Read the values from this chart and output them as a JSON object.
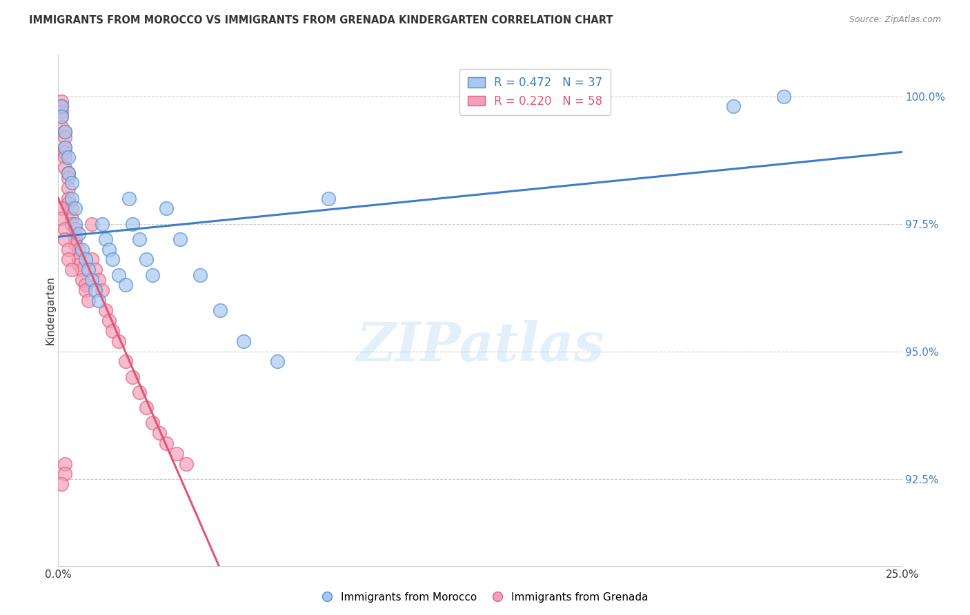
{
  "title": "IMMIGRANTS FROM MOROCCO VS IMMIGRANTS FROM GRENADA KINDERGARTEN CORRELATION CHART",
  "source": "Source: ZipAtlas.com",
  "ylabel": "Kindergarten",
  "ytick_labels": [
    "92.5%",
    "95.0%",
    "97.5%",
    "100.0%"
  ],
  "ytick_values": [
    0.925,
    0.95,
    0.975,
    1.0
  ],
  "xlim": [
    0.0,
    0.25
  ],
  "ylim": [
    0.908,
    1.008
  ],
  "morocco_color": "#a8c8f0",
  "grenada_color": "#f4a0b8",
  "morocco_edge": "#5090d0",
  "grenada_edge": "#e06080",
  "trendline_morocco": "#3d7cc9",
  "trendline_grenada": "#e05575",
  "R_morocco": 0.472,
  "N_morocco": 37,
  "R_grenada": 0.22,
  "N_grenada": 58,
  "morocco_x": [
    0.001,
    0.001,
    0.002,
    0.002,
    0.003,
    0.003,
    0.004,
    0.004,
    0.005,
    0.005,
    0.006,
    0.007,
    0.008,
    0.009,
    0.01,
    0.011,
    0.012,
    0.013,
    0.014,
    0.015,
    0.016,
    0.018,
    0.02,
    0.021,
    0.022,
    0.024,
    0.026,
    0.028,
    0.032,
    0.036,
    0.042,
    0.048,
    0.055,
    0.065,
    0.08,
    0.2,
    0.215
  ],
  "morocco_y": [
    0.998,
    0.996,
    0.993,
    0.99,
    0.988,
    0.985,
    0.983,
    0.98,
    0.978,
    0.975,
    0.973,
    0.97,
    0.968,
    0.966,
    0.964,
    0.962,
    0.96,
    0.975,
    0.972,
    0.97,
    0.968,
    0.965,
    0.963,
    0.98,
    0.975,
    0.972,
    0.968,
    0.965,
    0.978,
    0.972,
    0.965,
    0.958,
    0.952,
    0.948,
    0.98,
    0.998,
    1.0
  ],
  "grenada_x": [
    0.001,
    0.001,
    0.001,
    0.001,
    0.001,
    0.002,
    0.002,
    0.002,
    0.002,
    0.002,
    0.002,
    0.003,
    0.003,
    0.003,
    0.003,
    0.003,
    0.004,
    0.004,
    0.004,
    0.005,
    0.005,
    0.005,
    0.006,
    0.006,
    0.006,
    0.007,
    0.007,
    0.008,
    0.008,
    0.009,
    0.01,
    0.01,
    0.011,
    0.012,
    0.013,
    0.014,
    0.015,
    0.016,
    0.018,
    0.02,
    0.022,
    0.024,
    0.026,
    0.028,
    0.03,
    0.032,
    0.035,
    0.038,
    0.001,
    0.001,
    0.002,
    0.002,
    0.003,
    0.003,
    0.004,
    0.002,
    0.002,
    0.001
  ],
  "grenada_y": [
    0.999,
    0.998,
    0.997,
    0.996,
    0.994,
    0.993,
    0.992,
    0.99,
    0.989,
    0.988,
    0.986,
    0.985,
    0.984,
    0.982,
    0.98,
    0.979,
    0.978,
    0.976,
    0.975,
    0.974,
    0.972,
    0.971,
    0.97,
    0.968,
    0.967,
    0.966,
    0.964,
    0.963,
    0.962,
    0.96,
    0.975,
    0.968,
    0.966,
    0.964,
    0.962,
    0.958,
    0.956,
    0.954,
    0.952,
    0.948,
    0.945,
    0.942,
    0.939,
    0.936,
    0.934,
    0.932,
    0.93,
    0.928,
    0.978,
    0.976,
    0.974,
    0.972,
    0.97,
    0.968,
    0.966,
    0.928,
    0.926,
    0.924
  ]
}
